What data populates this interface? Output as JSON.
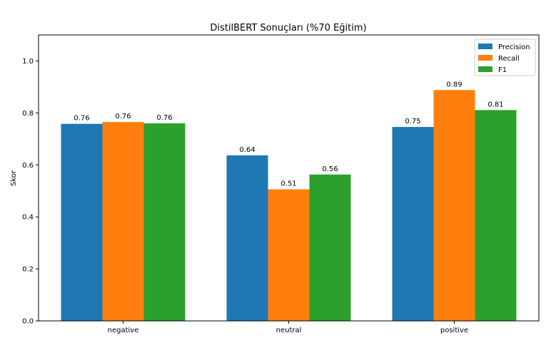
{
  "chart_data": {
    "type": "bar",
    "title": "DistilBERT Sonuçları (%70 Eğitim)",
    "xlabel": "",
    "ylabel": "Skor",
    "categories": [
      "negative",
      "neutral",
      "positive"
    ],
    "ylim": [
      0,
      1.1
    ],
    "yticks": [
      0.0,
      0.2,
      0.4,
      0.6,
      0.8,
      1.0
    ],
    "ytick_labels": [
      "0.0",
      "0.2",
      "0.4",
      "0.6",
      "0.8",
      "1.0"
    ],
    "grid": false,
    "legend_position": "top-right",
    "series": [
      {
        "name": "Precision",
        "color": "#1f77b4",
        "values": [
          0.758,
          0.637,
          0.746
        ],
        "labels": [
          "0.76",
          "0.64",
          "0.75"
        ]
      },
      {
        "name": "Recall",
        "color": "#ff7f0e",
        "values": [
          0.765,
          0.506,
          0.888
        ],
        "labels": [
          "0.76",
          "0.51",
          "0.89"
        ]
      },
      {
        "name": "F1",
        "color": "#2ca02c",
        "values": [
          0.76,
          0.563,
          0.811
        ],
        "labels": [
          "0.76",
          "0.56",
          "0.81"
        ]
      }
    ]
  }
}
